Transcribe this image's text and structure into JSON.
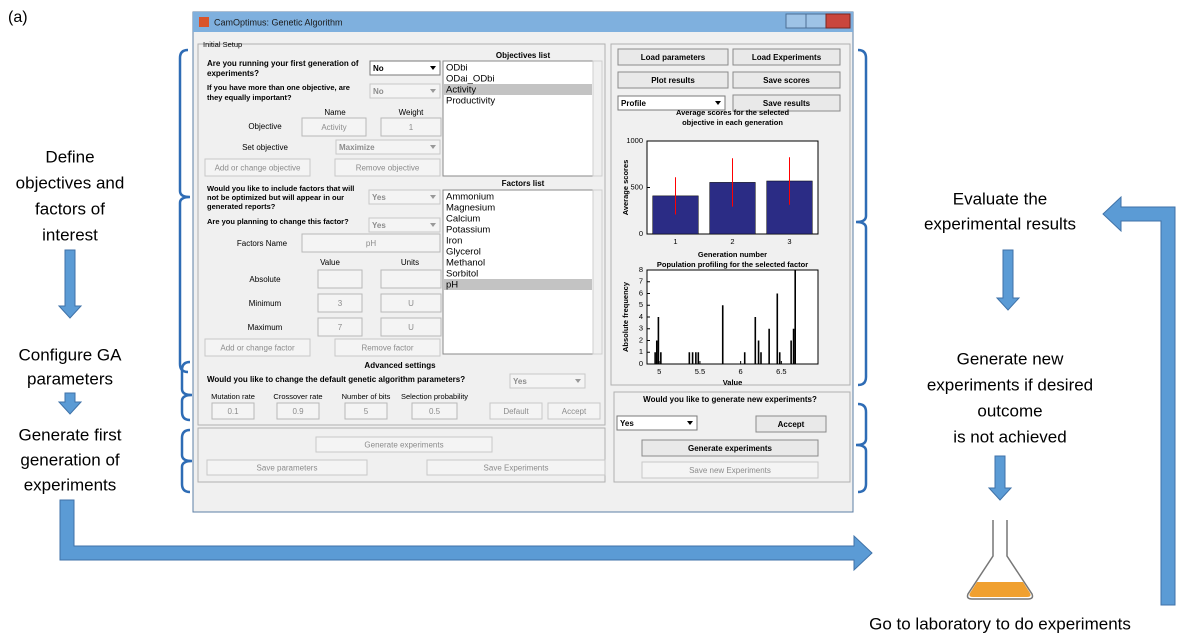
{
  "panel_label": "(a)",
  "window": {
    "title": "CamOptimus: Genetic Algorithm",
    "setup": {
      "legend": "Initial Setup",
      "first_gen_question": [
        "Are you running your first generation of",
        "experiments?"
      ],
      "first_gen_answer": "No",
      "equal_question": [
        "If you have more than one objective, are",
        "they equally important?"
      ],
      "equal_answer": "No",
      "name_header": "Name",
      "weight_header": "Weight",
      "objective_label": "Objective",
      "objective_name": "Activity",
      "objective_weight": "1",
      "set_objective_label": "Set objective",
      "set_objective_answer": "Maximize",
      "add_objective": "Add or change objective",
      "remove_objective": "Remove objective",
      "objectives_title": "Objectives list",
      "objectives": [
        {
          "text": "ODbi",
          "selected": false
        },
        {
          "text": "ODai_ODbi",
          "selected": false
        },
        {
          "text": "Activity",
          "selected": true
        },
        {
          "text": "Productivity",
          "selected": false
        }
      ],
      "include_question": [
        "Would you like to include factors that will",
        "not be optimized but will appear in our",
        "generated reports?"
      ],
      "include_answer": "Yes",
      "change_question": "Are you planning to change this factor?",
      "change_answer": "Yes",
      "factor_name_label": "Factors Name",
      "factor_name": "pH",
      "value_header": "Value",
      "units_header": "Units",
      "rows": [
        {
          "label": "Absolute"
        },
        {
          "label": "Minimum",
          "value": "3",
          "units": "U"
        },
        {
          "label": "Maximum",
          "value": "7",
          "units": "U"
        }
      ],
      "add_factor": "Add or change factor",
      "remove_factor": "Remove factor",
      "factors_title": "Factors list",
      "factors": [
        {
          "text": "Ammonium",
          "selected": false
        },
        {
          "text": "Magnesium",
          "selected": false
        },
        {
          "text": "Calcium",
          "selected": false
        },
        {
          "text": "Potassium",
          "selected": false
        },
        {
          "text": "Iron",
          "selected": false
        },
        {
          "text": "Glycerol",
          "selected": false
        },
        {
          "text": "Methanol",
          "selected": false
        },
        {
          "text": "Sorbitol",
          "selected": false
        },
        {
          "text": "pH",
          "selected": true
        }
      ]
    },
    "advanced": {
      "title": "Advanced settings",
      "question": "Would you like to change the default genetic algorithm parameters?",
      "answer": "Yes",
      "params": [
        {
          "label": "Mutation rate",
          "value": "0.1"
        },
        {
          "label": "Crossover rate",
          "value": "0.9"
        },
        {
          "label": "Number of bits",
          "value": "5"
        },
        {
          "label": "Selection probability",
          "value": "0.5"
        }
      ],
      "default": "Default",
      "accept": "Accept"
    },
    "generate": {
      "generate": "Generate experiments",
      "save_parameters": "Save parameters",
      "save_experiments": "Save Experiments"
    },
    "results": {
      "load_parameters": "Load parameters",
      "load_experiments": "Load Experiments",
      "plot_results": "Plot results",
      "save_scores": "Save scores",
      "profile_choice": "Profile",
      "save_results": "Save results"
    },
    "next": {
      "question": "Would you like to generate new experiments?",
      "answer": "Yes",
      "accept": "Accept",
      "generate": "Generate experiments",
      "save": "Save new Experiments"
    }
  },
  "chart_data": [
    {
      "type": "bar",
      "title": [
        "Average scores for the selected",
        "objective in each generation"
      ],
      "xlabel": "Generation number",
      "ylabel": "Average scores",
      "categories": [
        "1",
        "2",
        "3"
      ],
      "values": [
        410,
        555,
        570
      ],
      "errors": [
        200,
        260,
        255
      ],
      "color": "#2b2c85",
      "error_color": "#ff0000",
      "ylim": [
        0,
        1000
      ],
      "yticks": [
        0,
        500,
        1000
      ]
    },
    {
      "type": "stem",
      "title": [
        "Population profiling for the selected factor"
      ],
      "xlabel": "Value",
      "ylabel": "Absolute frequency",
      "x": [
        4.95,
        4.97,
        4.99,
        5.02,
        5.37,
        5.41,
        5.45,
        5.48,
        5.78,
        6.05,
        6.18,
        6.22,
        6.25,
        6.35,
        6.45,
        6.48,
        6.62,
        6.65,
        6.67
      ],
      "values": [
        1,
        2,
        4,
        1,
        1,
        1,
        1,
        1,
        5,
        1,
        4,
        2,
        1,
        3,
        6,
        1,
        2,
        3,
        8
      ],
      "color": "#000000",
      "xlim": [
        4.85,
        6.95
      ],
      "xticks": [
        5,
        5.5,
        6,
        6.5
      ],
      "ylim": [
        0,
        8
      ],
      "yticks": [
        0,
        1,
        2,
        3,
        4,
        5,
        6,
        7,
        8
      ]
    }
  ],
  "annotations": {
    "define": [
      "Define",
      "objectives and",
      "factors of",
      "interest"
    ],
    "configure": [
      "Configure GA",
      "parameters"
    ],
    "generate_first": [
      "Generate first",
      "generation of",
      "experiments"
    ],
    "evaluate": [
      "Evaluate the",
      "experimental results"
    ],
    "generate_new": [
      "Generate new",
      "experiments if desired",
      "outcome",
      "is not achieved"
    ],
    "laboratory": "Go to laboratory to do experiments"
  }
}
